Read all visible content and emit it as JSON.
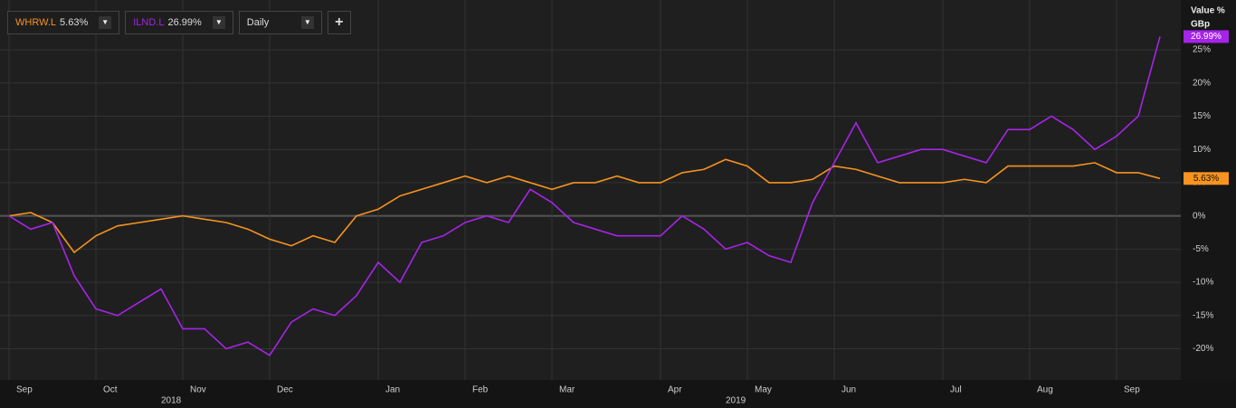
{
  "chart_data": {
    "type": "line",
    "axis_title": "Value %",
    "axis_unit": "GBp",
    "interval": "Daily",
    "add_button": "+",
    "categories": [
      "Sep",
      null,
      null,
      null,
      "Oct",
      null,
      null,
      null,
      "Nov",
      null,
      null,
      null,
      "Dec",
      null,
      null,
      null,
      null,
      "Jan",
      null,
      null,
      null,
      "Feb",
      null,
      null,
      null,
      "Mar",
      null,
      null,
      null,
      null,
      "Apr",
      null,
      null,
      null,
      "May",
      null,
      null,
      null,
      "Jun",
      null,
      null,
      null,
      null,
      "Jul",
      null,
      null,
      null,
      "Aug",
      null,
      null,
      null,
      "Sep",
      null,
      null
    ],
    "year_categories": [
      null,
      null,
      null,
      null,
      null,
      null,
      null,
      null,
      "2018",
      null,
      null,
      null,
      null,
      null,
      null,
      null,
      null,
      null,
      null,
      null,
      null,
      null,
      null,
      null,
      null,
      null,
      null,
      null,
      null,
      null,
      null,
      null,
      null,
      null,
      "2019",
      null,
      null,
      null,
      null,
      null,
      null,
      null,
      null,
      null,
      null,
      null,
      null,
      null,
      null,
      null,
      null,
      null,
      null,
      null
    ],
    "series": [
      {
        "name": "WHRW.L",
        "color": "#f7931e",
        "values": [
          0,
          0.5,
          -1,
          -5.5,
          -3,
          -1.5,
          -1,
          -0.5,
          0,
          -0.5,
          -1,
          -2,
          -3.5,
          -4.5,
          -3,
          -4,
          0,
          1,
          3,
          4,
          5,
          6,
          5,
          6,
          5,
          4,
          5,
          5,
          6,
          5,
          5,
          6.5,
          7,
          8.5,
          7.5,
          5,
          5,
          5.5,
          7.5,
          7,
          6,
          5,
          5,
          5,
          5.5,
          5,
          7.5,
          7.5,
          7.5,
          7.5,
          8,
          6.5,
          6.5,
          5.63
        ],
        "value_labels": [
          null,
          null,
          null,
          null,
          null,
          null,
          null,
          null,
          null,
          null,
          null,
          null,
          null,
          null,
          null,
          null,
          null,
          null,
          null,
          null,
          null,
          null,
          null,
          null,
          null,
          null,
          null,
          null,
          null,
          null,
          null,
          null,
          null,
          null,
          null,
          null,
          null,
          null,
          null,
          null,
          null,
          null,
          null,
          null,
          null,
          null,
          null,
          null,
          null,
          null,
          null,
          null,
          null,
          "5.63%"
        ]
      },
      {
        "name": "ILND.L",
        "color": "#a624e8",
        "values": [
          0,
          -2,
          -1,
          -9,
          -14,
          -15,
          -13,
          -11,
          -17,
          -17,
          -20,
          -19,
          -21,
          -16,
          -14,
          -15,
          -12,
          -7,
          -10,
          -4,
          -3,
          -1,
          0,
          -1,
          4,
          2,
          -1,
          -2,
          -3,
          -3,
          -3,
          0,
          -2,
          -5,
          -4,
          -6,
          -7,
          2,
          8,
          14,
          8,
          9,
          10,
          10,
          9,
          8,
          13,
          13,
          15,
          13,
          10,
          12,
          15,
          26.99
        ],
        "value_labels": [
          null,
          null,
          null,
          null,
          null,
          null,
          null,
          null,
          null,
          null,
          null,
          null,
          null,
          null,
          null,
          null,
          null,
          null,
          null,
          null,
          null,
          null,
          null,
          null,
          null,
          null,
          null,
          null,
          null,
          null,
          null,
          null,
          null,
          null,
          null,
          null,
          null,
          null,
          null,
          null,
          null,
          null,
          null,
          null,
          null,
          null,
          null,
          null,
          null,
          null,
          null,
          null,
          null,
          "26.99%"
        ]
      }
    ],
    "ylim": [
      -24.7,
      32.5
    ],
    "yticks": [
      {
        "value": -20,
        "label": "-20%"
      },
      {
        "value": -15,
        "label": "-15%"
      },
      {
        "value": -10,
        "label": "-10%"
      },
      {
        "value": -5,
        "label": "-5%"
      },
      {
        "value": 0,
        "label": "0%"
      },
      {
        "value": 5,
        "label": "5%"
      },
      {
        "value": 10,
        "label": "10%"
      },
      {
        "value": 15,
        "label": "15%"
      },
      {
        "value": 20,
        "label": "20%"
      },
      {
        "value": 25,
        "label": "25%"
      }
    ],
    "grid": true
  }
}
